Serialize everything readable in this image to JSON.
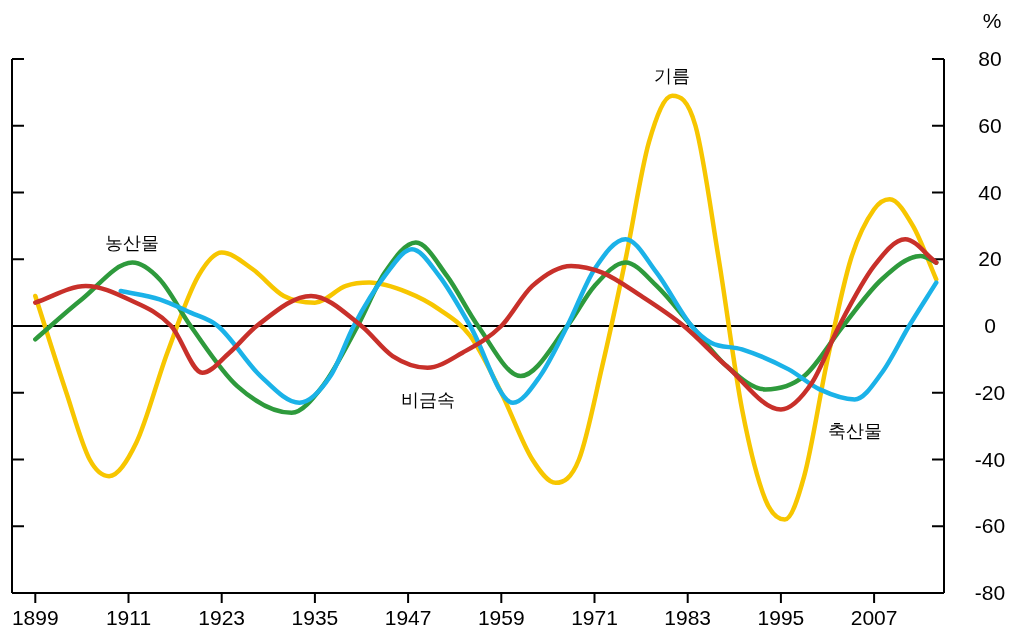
{
  "chart_data": {
    "type": "line",
    "ylabel": "%",
    "xlim": [
      1896,
      2016
    ],
    "xticks": [
      1899,
      1911,
      1923,
      1935,
      1947,
      1959,
      1971,
      1983,
      1995,
      2007
    ],
    "ylim": [
      -80,
      80
    ],
    "yticks": [
      -80,
      -60,
      -40,
      -20,
      0,
      20,
      40,
      60,
      80
    ],
    "line_style": "solid",
    "ref_lines": [
      {
        "axis": "y",
        "value": 0,
        "color": "#000000"
      }
    ],
    "series": [
      {
        "color": "#f7c600",
        "x": [
          1899,
          1903,
          1906,
          1908.5,
          1912,
          1916,
          1920,
          1923,
          1927,
          1931,
          1935,
          1939,
          1942,
          1947,
          1951,
          1955,
          1959,
          1963,
          1966,
          1969,
          1972,
          1975,
          1978,
          1981,
          1984,
          1987,
          1990,
          1993,
          1995.5,
          1998,
          2001,
          2004,
          2007,
          2009,
          2012,
          2015
        ],
        "values": [
          9,
          -20,
          -40,
          -45,
          -35,
          -8,
          15,
          22,
          17,
          9,
          7,
          12,
          13,
          10,
          5,
          -3,
          -20,
          -40,
          -47,
          -40,
          -12,
          20,
          55,
          69,
          60,
          20,
          -25,
          -52,
          -58,
          -45,
          -10,
          20,
          35,
          38,
          30,
          14
        ]
      },
      {
        "color": "#2e9a3c",
        "x": [
          1899,
          1905,
          1911.5,
          1915,
          1919,
          1925,
          1932,
          1936,
          1940.5,
          1944,
          1948,
          1952,
          1956,
          1961.5,
          1967.5,
          1971,
          1975,
          1979,
          1983.5,
          1988,
          1993,
          1998,
          2003,
          2008,
          2013,
          2015
        ],
        "values": [
          -4,
          8,
          19,
          14,
          0,
          -18,
          -26,
          -18,
          0,
          16,
          25,
          15,
          0,
          -15,
          0,
          12,
          19,
          12,
          0,
          -12,
          -19,
          -15,
          0,
          14,
          21,
          19
        ]
      },
      {
        "color": "#1bb2e8",
        "x": [
          1910,
          1915,
          1919,
          1922.5,
          1928,
          1933,
          1937,
          1940,
          1944,
          1947.5,
          1951,
          1955,
          1960.5,
          1964,
          1967.5,
          1971,
          1975,
          1979,
          1983.5,
          1986,
          1990,
          1996,
          2000,
          2004.5,
          2008,
          2011.5,
          2015
        ],
        "values": [
          10.5,
          8,
          4,
          0,
          -15,
          -23,
          -15,
          0,
          15,
          23,
          15,
          0,
          -23,
          -15,
          0,
          17,
          26,
          16,
          0,
          -5,
          -7,
          -13,
          -19,
          -22,
          -14,
          0,
          13
        ]
      },
      {
        "color": "#c8302a",
        "x": [
          1899,
          1905.5,
          1911,
          1916.5,
          1920.5,
          1924,
          1927.5,
          1934.5,
          1941,
          1945,
          1949.5,
          1954,
          1959,
          1963,
          1968,
          1972,
          1977,
          1982.5,
          1988,
          1995,
          1999,
          2002.5,
          2007,
          2011,
          2015
        ],
        "values": [
          7,
          12,
          8,
          0,
          -14,
          -8,
          0,
          9,
          0,
          -9,
          -12.5,
          -8,
          0,
          12,
          18,
          16,
          9,
          0,
          -12,
          -25,
          -17,
          0,
          18,
          26,
          19
        ]
      }
    ],
    "annotations": [
      {
        "text": "기름",
        "x": 1981,
        "y": 69
      },
      {
        "text": "농산물",
        "x": 1911.5,
        "y": 19
      },
      {
        "text": "비금속",
        "x": 1949.5,
        "y": -12.5
      },
      {
        "text": "축산물",
        "x": 2004.5,
        "y": -22
      }
    ]
  }
}
